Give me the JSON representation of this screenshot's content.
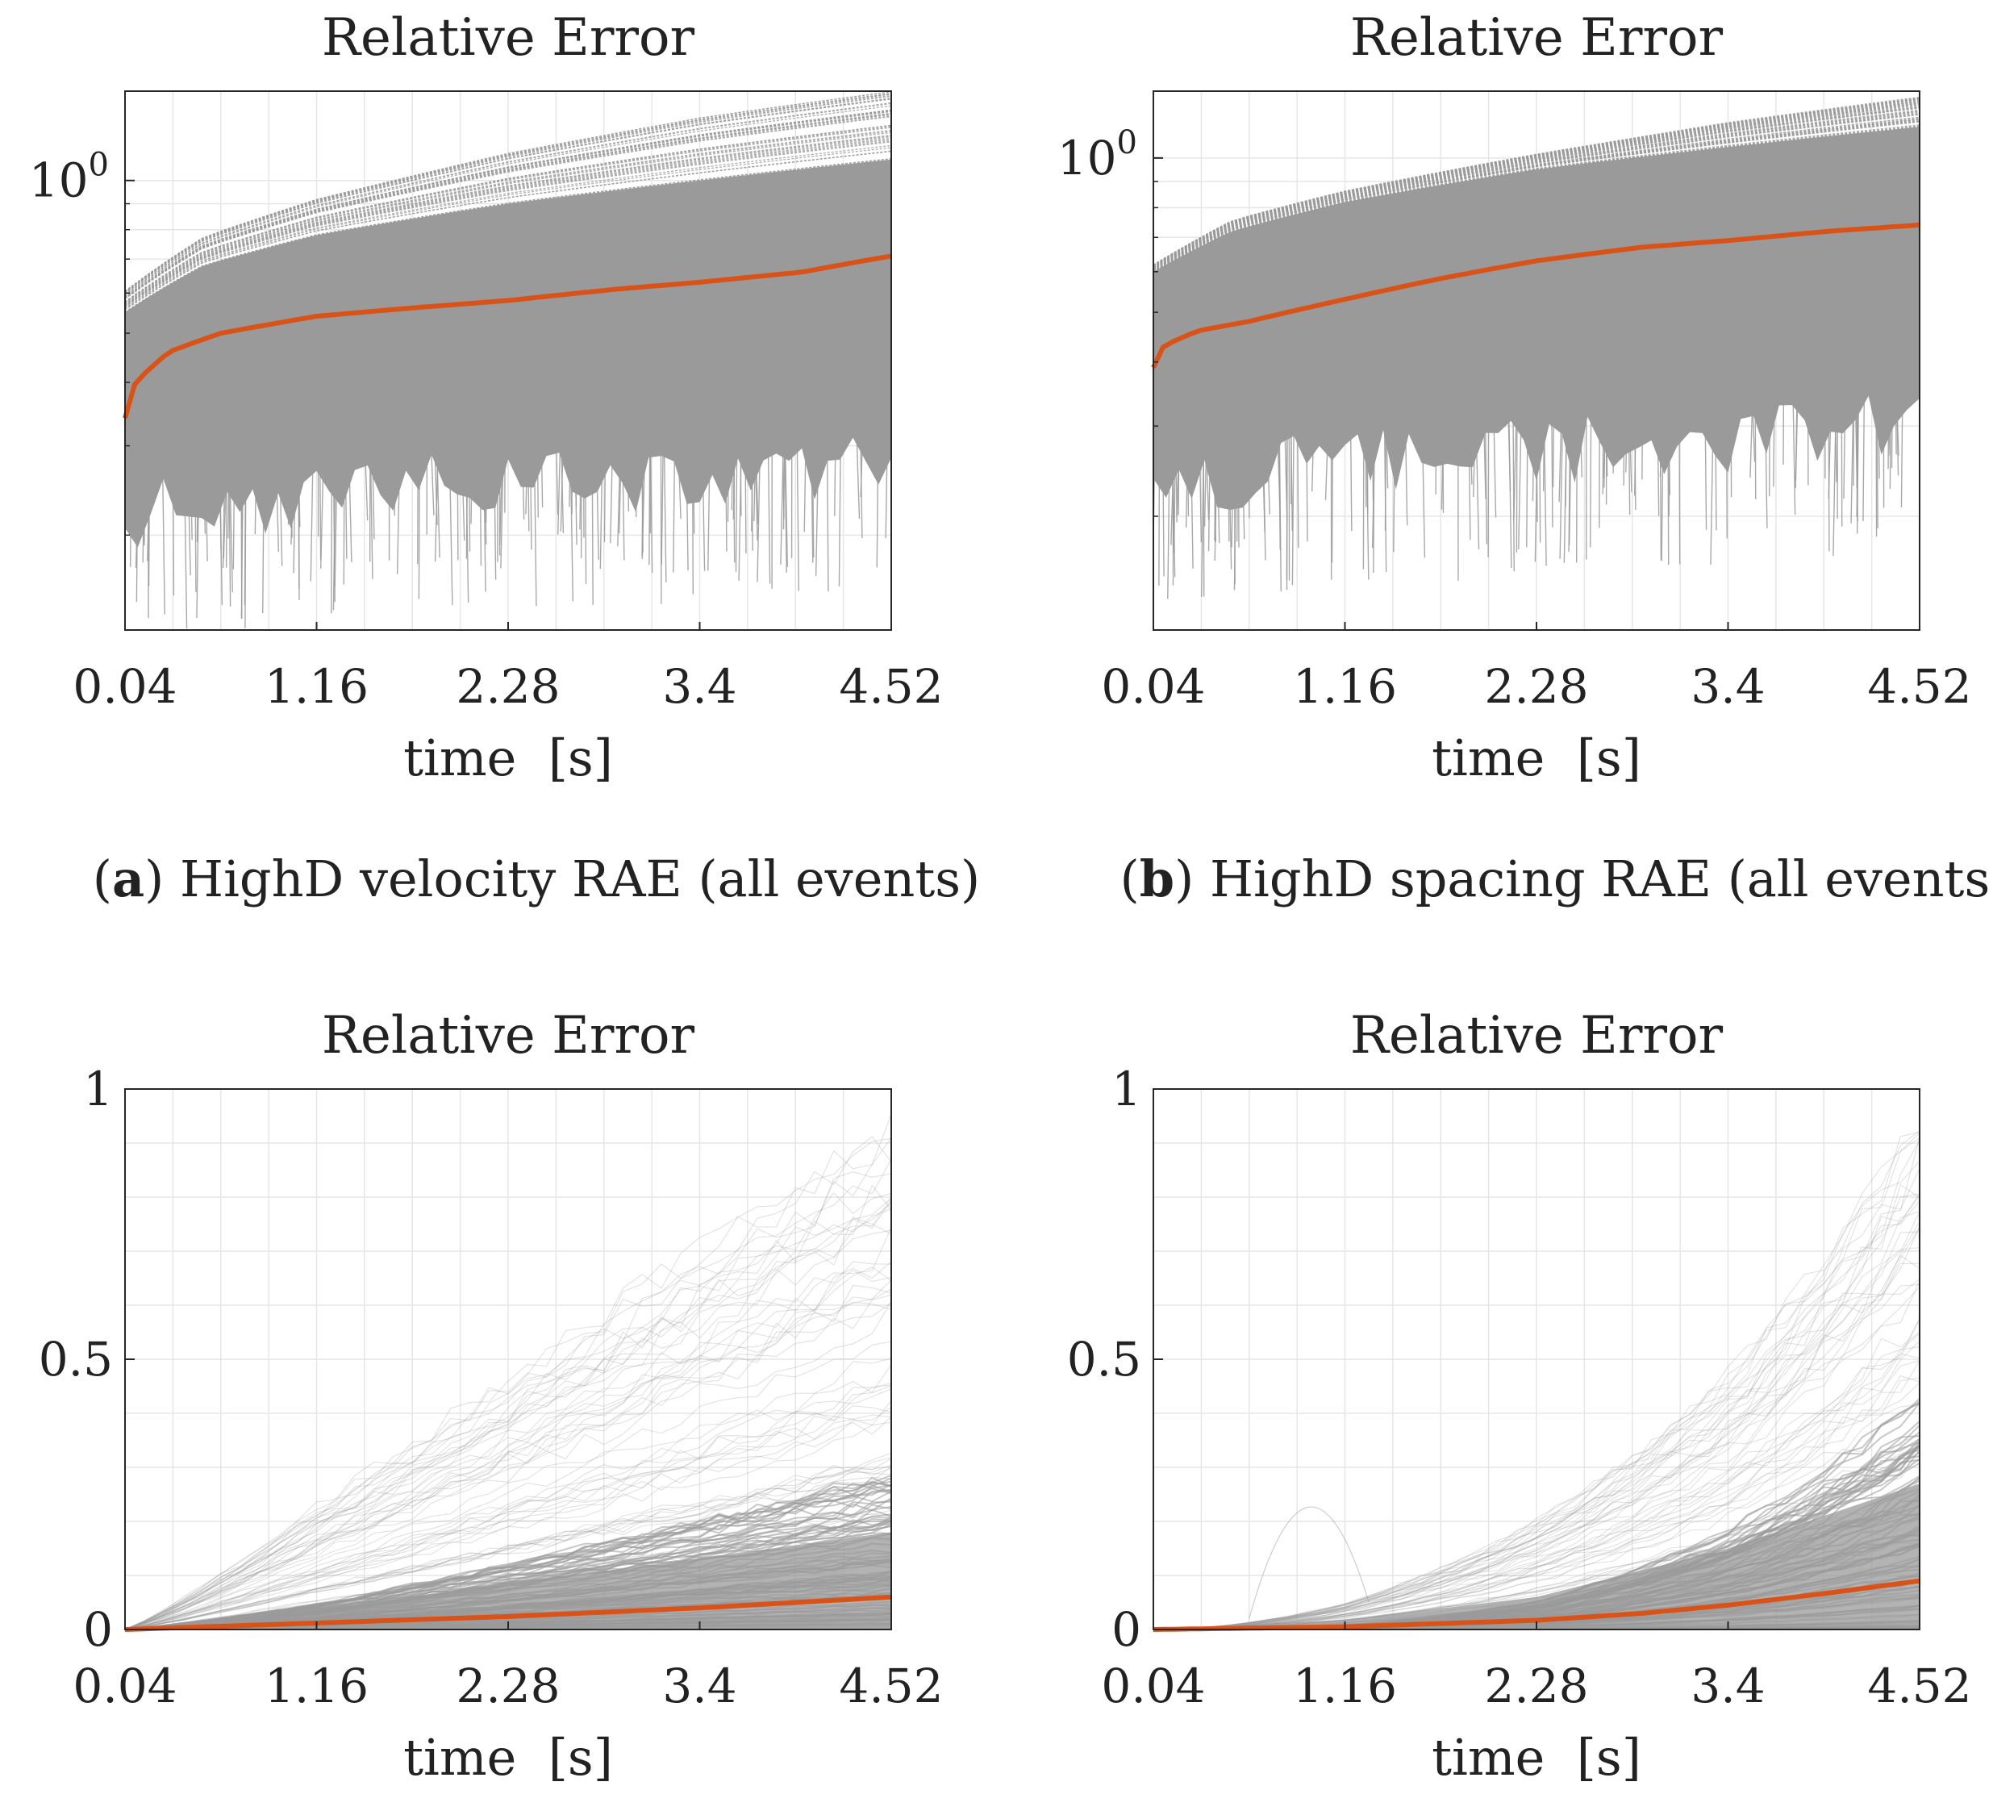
{
  "captions": [
    {
      "letter": "a",
      "text": "HighD velocity RAE (all events)"
    },
    {
      "letter": "b",
      "text": "HighD spacing RAE (all events)"
    },
    {
      "letter": "",
      "text": ""
    },
    {
      "letter": "",
      "text": ""
    }
  ],
  "colors": {
    "mean": "#d95319",
    "traces": "#9a9a9a",
    "axis": "#262626",
    "grid": "#e6e6e6"
  },
  "chart_data": [
    {
      "type": "line",
      "title": "Relative Error",
      "xlabel": "time  [s]",
      "ylabel": "",
      "yscale": "log",
      "xlim": [
        0.04,
        4.52
      ],
      "ylim": [
        0.13,
        1.5
      ],
      "x_ticks": [
        0.04,
        1.16,
        2.28,
        3.4,
        4.52
      ],
      "x_tick_labels": [
        "0.04",
        "1.16",
        "2.28",
        "3.4",
        "4.52"
      ],
      "y_ticks": [
        1
      ],
      "y_tick_labels": [
        "10^0"
      ],
      "grid": true,
      "legend": "none",
      "trace_band": {
        "x": [
          0.04,
          0.5,
          1.16,
          2.28,
          3.4,
          4.52
        ],
        "lower": [
          0.15,
          0.15,
          0.16,
          0.17,
          0.17,
          0.18
        ],
        "upper": [
          0.55,
          0.68,
          0.78,
          0.9,
          1.0,
          1.1
        ],
        "max_outlier": [
          0.7,
          0.9,
          1.05,
          1.25,
          1.4,
          1.5
        ]
      },
      "series": [
        {
          "name": "mean",
          "x": [
            0.04,
            0.1,
            0.3,
            0.6,
            1.16,
            1.7,
            2.28,
            2.9,
            3.4,
            4.0,
            4.52
          ],
          "values": [
            0.34,
            0.4,
            0.46,
            0.5,
            0.54,
            0.56,
            0.58,
            0.61,
            0.63,
            0.66,
            0.71
          ]
        }
      ]
    },
    {
      "type": "line",
      "title": "Relative Error",
      "xlabel": "time  [s]",
      "ylabel": "",
      "yscale": "log",
      "xlim": [
        0.04,
        4.52
      ],
      "ylim": [
        0.12,
        1.35
      ],
      "x_ticks": [
        0.04,
        1.16,
        2.28,
        3.4,
        4.52
      ],
      "x_tick_labels": [
        "0.04",
        "1.16",
        "2.28",
        "3.4",
        "4.52"
      ],
      "y_ticks": [
        1
      ],
      "y_tick_labels": [
        "10^0"
      ],
      "grid": true,
      "legend": "none",
      "trace_band": {
        "x": [
          0.04,
          0.5,
          1.16,
          2.28,
          3.4,
          4.52
        ],
        "lower": [
          0.15,
          0.16,
          0.17,
          0.18,
          0.19,
          0.2
        ],
        "upper": [
          0.6,
          0.72,
          0.82,
          0.95,
          1.05,
          1.15
        ],
        "max_outlier": [
          0.65,
          0.8,
          0.9,
          1.05,
          1.2,
          1.32
        ]
      },
      "series": [
        {
          "name": "mean",
          "x": [
            0.04,
            0.1,
            0.3,
            0.6,
            1.16,
            1.7,
            2.28,
            2.9,
            3.4,
            4.0,
            4.52
          ],
          "values": [
            0.39,
            0.43,
            0.46,
            0.48,
            0.53,
            0.58,
            0.63,
            0.67,
            0.69,
            0.72,
            0.74
          ]
        }
      ]
    },
    {
      "type": "line",
      "title": "Relative Error",
      "xlabel": "time  [s]",
      "ylabel": "",
      "yscale": "linear",
      "xlim": [
        0.04,
        4.52
      ],
      "ylim": [
        0,
        1
      ],
      "x_ticks": [
        0.04,
        1.16,
        2.28,
        3.4,
        4.52
      ],
      "x_tick_labels": [
        "0.04",
        "1.16",
        "2.28",
        "3.4",
        "4.52"
      ],
      "y_ticks": [
        0,
        0.5,
        1
      ],
      "y_tick_labels": [
        "0",
        "0.5",
        "1"
      ],
      "grid": true,
      "legend": "none",
      "trace_band": {
        "x": [
          0.04,
          1.16,
          2.28,
          3.4,
          4.52
        ],
        "dense_upper": [
          0.0,
          0.06,
          0.14,
          0.22,
          0.3
        ],
        "light_upper": [
          0.0,
          0.3,
          0.55,
          0.78,
          1.0
        ]
      },
      "series": [
        {
          "name": "mean",
          "x": [
            0.04,
            1.16,
            2.28,
            3.4,
            4.52
          ],
          "values": [
            0.0,
            0.012,
            0.024,
            0.04,
            0.06
          ]
        }
      ]
    },
    {
      "type": "line",
      "title": "Relative Error",
      "xlabel": "time  [s]",
      "ylabel": "",
      "yscale": "linear",
      "xlim": [
        0.04,
        4.52
      ],
      "ylim": [
        0,
        1
      ],
      "x_ticks": [
        0.04,
        1.16,
        2.28,
        3.4,
        4.52
      ],
      "x_tick_labels": [
        "0.04",
        "1.16",
        "2.28",
        "3.4",
        "4.52"
      ],
      "y_ticks": [
        0,
        0.5,
        1
      ],
      "y_tick_labels": [
        "0",
        "0.5",
        "1"
      ],
      "grid": true,
      "legend": "none",
      "trace_band": {
        "x": [
          0.04,
          1.16,
          2.28,
          3.4,
          4.52
        ],
        "dense_upper": [
          0.0,
          0.03,
          0.1,
          0.25,
          0.45
        ],
        "light_upper": [
          0.0,
          0.18,
          0.4,
          0.65,
          1.0
        ],
        "bump": {
          "x": 0.95,
          "y": 0.22
        }
      },
      "series": [
        {
          "name": "mean",
          "x": [
            0.04,
            1.16,
            2.28,
            2.9,
            3.4,
            4.0,
            4.52
          ],
          "values": [
            0.0,
            0.005,
            0.017,
            0.03,
            0.045,
            0.068,
            0.09
          ]
        }
      ]
    }
  ]
}
